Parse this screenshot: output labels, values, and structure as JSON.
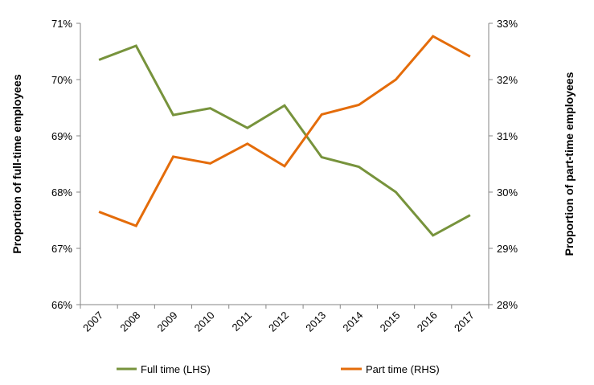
{
  "chart_data": {
    "type": "line",
    "categories": [
      "2007",
      "2008",
      "2009",
      "2010",
      "2011",
      "2012",
      "2013",
      "2014",
      "2015",
      "2016",
      "2017"
    ],
    "series": [
      {
        "name": "Full time (LHS)",
        "axis": "left",
        "color": "#77933c",
        "values": [
          70.35,
          70.6,
          69.37,
          69.49,
          69.14,
          69.54,
          68.62,
          68.45,
          68.0,
          67.23,
          67.59
        ]
      },
      {
        "name": "Part time (RHS)",
        "axis": "right",
        "color": "#e46c0a",
        "values": [
          29.65,
          29.4,
          30.63,
          30.51,
          30.86,
          30.46,
          31.38,
          31.55,
          32.0,
          32.77,
          32.41
        ]
      }
    ],
    "y_left": {
      "label": "Proportion of full-time employees",
      "range": [
        66,
        71
      ],
      "ticks": [
        "66%",
        "67%",
        "68%",
        "69%",
        "70%",
        "71%"
      ]
    },
    "y_right": {
      "label": "Proportion of part-time employees",
      "range": [
        28,
        33
      ],
      "ticks": [
        "28%",
        "29%",
        "30%",
        "31%",
        "32%",
        "33%"
      ]
    },
    "grid": false,
    "legend_position": "bottom"
  }
}
